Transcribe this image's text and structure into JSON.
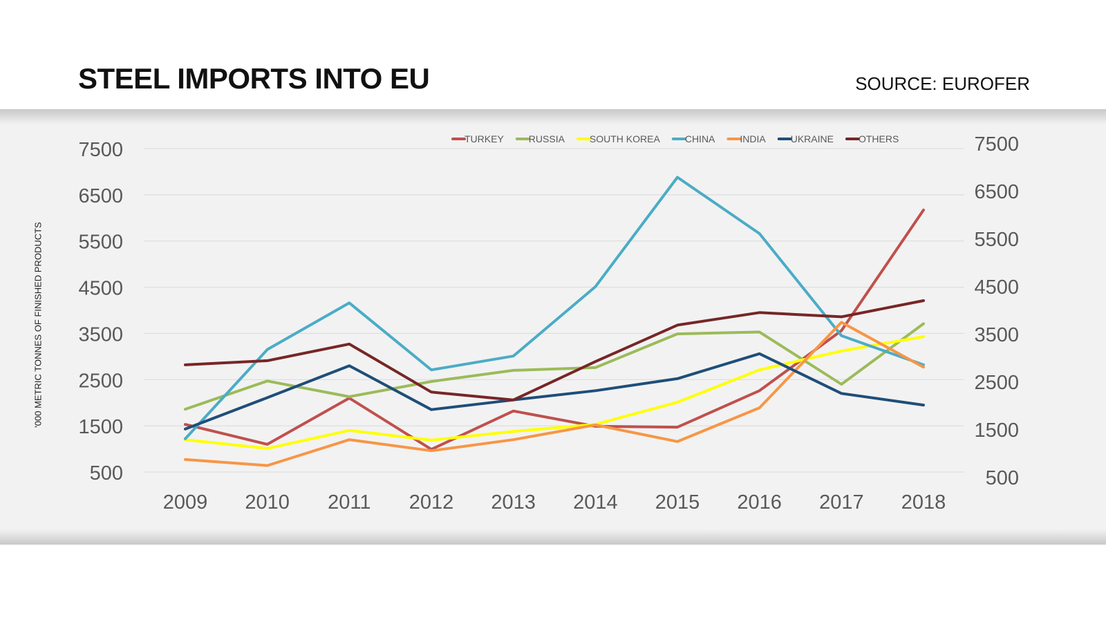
{
  "title": "STEEL IMPORTS INTO EU",
  "source": "SOURCE: EUROFER",
  "chart_data": {
    "type": "line",
    "title": "STEEL IMPORTS INTO EU",
    "ylabel": "'000 METRIC TONNES OF FINISHED PRODUCTS",
    "xlabel": "",
    "ylim": [
      500,
      7500
    ],
    "y_ticks": [
      "7500",
      "6500",
      "5500",
      "4500",
      "3500",
      "2500",
      "1500",
      "500"
    ],
    "y_ticks_right": [
      "7500",
      "6500",
      "5500",
      "4500",
      "3500",
      "2500",
      "1500",
      "500"
    ],
    "grid": true,
    "legend_position": "top",
    "categories": [
      "2009",
      "2010",
      "2011",
      "2012",
      "2013",
      "2014",
      "2015",
      "2016",
      "2017",
      "2018"
    ],
    "series": [
      {
        "name": "TURKEY",
        "color": "#c0504d",
        "values": [
          1530,
          1100,
          2100,
          990,
          1820,
          1490,
          1470,
          2260,
          3560,
          6170
        ]
      },
      {
        "name": "RUSSIA",
        "color": "#9bbb59",
        "values": [
          1860,
          2470,
          2130,
          2460,
          2700,
          2760,
          3490,
          3530,
          2400,
          3710
        ]
      },
      {
        "name": "SOUTH KOREA",
        "color": "#ffff00",
        "values": [
          1200,
          1010,
          1400,
          1190,
          1380,
          1530,
          2010,
          2710,
          3120,
          3430
        ]
      },
      {
        "name": "CHINA",
        "color": "#4bacc6",
        "values": [
          1220,
          3150,
          4160,
          2710,
          3010,
          4510,
          6880,
          5660,
          3450,
          2820
        ]
      },
      {
        "name": "INDIA",
        "color": "#f79646",
        "values": [
          770,
          640,
          1200,
          960,
          1200,
          1520,
          1160,
          1890,
          3740,
          2770
        ]
      },
      {
        "name": "UKRAINE",
        "color": "#1f4e79",
        "values": [
          1430,
          2110,
          2800,
          1850,
          2060,
          2260,
          2520,
          3060,
          2200,
          1950
        ]
      },
      {
        "name": "OTHERS",
        "color": "#772626",
        "values": [
          2820,
          2910,
          3270,
          2230,
          2060,
          2890,
          3680,
          3950,
          3860,
          4210
        ]
      }
    ]
  }
}
